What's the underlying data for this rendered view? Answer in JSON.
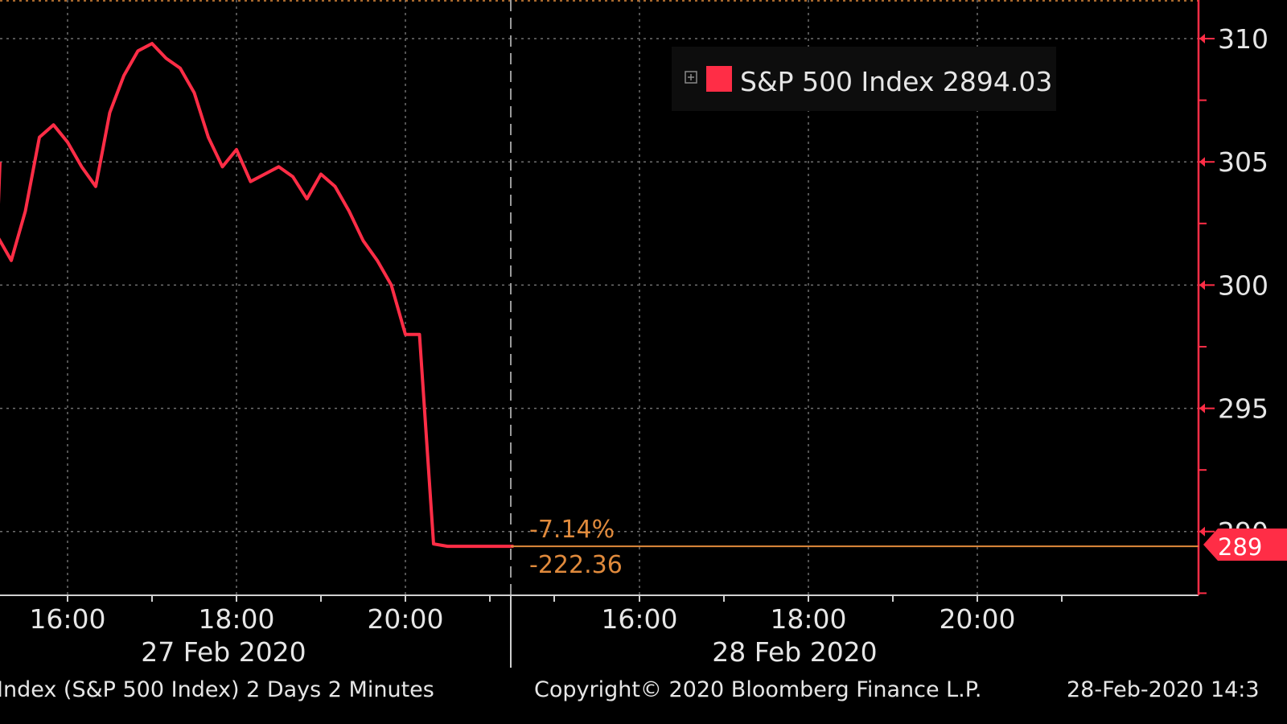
{
  "theme": {
    "background": "#000000",
    "grid": "#6f6f6f",
    "series_color": "#ff2d46",
    "axis_color": "#ff2d46",
    "text": "#e6e6e6",
    "annotation_color": "#e08a3c"
  },
  "legend": {
    "expand_icon": "plus-box-icon",
    "swatch_color": "#ff2d46",
    "label": "S&P 500 Index 2894.03"
  },
  "annotations": {
    "pct_change": "-7.14%",
    "abs_change": "-222.36",
    "last_price_tag": "289"
  },
  "footer": {
    "left": "Index (S&P 500 Index) 2 Days 2 Minutes",
    "center": "Copyright© 2020 Bloomberg Finance L.P.",
    "right": "28-Feb-2020 14:3"
  },
  "chart_data": {
    "type": "line",
    "title": "",
    "xlabel": "",
    "ylabel": "",
    "y_tick_labels": [
      "310",
      "305",
      "300",
      "295",
      "290"
    ],
    "y_ticks": [
      3100,
      3050,
      3000,
      2950,
      2900
    ],
    "ylim": [
      2866,
      3115
    ],
    "grid": true,
    "legend_position": "top-right",
    "day_labels": [
      "27 Feb 2020",
      "28 Feb 2020"
    ],
    "time_labels": [
      "16:00",
      "18:00",
      "20:00",
      "16:00",
      "18:00",
      "20:00"
    ],
    "series": [
      {
        "name": "S&P 500 Index",
        "last_value": 2894.03,
        "x": [
          "27 Feb 15:00",
          "27 Feb 15:10",
          "27 Feb 15:20",
          "27 Feb 15:30",
          "27 Feb 15:40",
          "27 Feb 15:50",
          "27 Feb 16:00",
          "27 Feb 16:10",
          "27 Feb 16:20",
          "27 Feb 16:30",
          "27 Feb 16:40",
          "27 Feb 16:50",
          "27 Feb 17:00",
          "27 Feb 17:10",
          "27 Feb 17:20",
          "27 Feb 17:30",
          "27 Feb 17:40",
          "27 Feb 17:50",
          "27 Feb 18:00",
          "27 Feb 18:10",
          "27 Feb 18:20",
          "27 Feb 18:30",
          "27 Feb 18:40",
          "27 Feb 18:50",
          "27 Feb 19:00",
          "27 Feb 19:10",
          "27 Feb 19:20",
          "27 Feb 19:30",
          "27 Feb 19:40",
          "27 Feb 19:50",
          "27 Feb 20:00",
          "27 Feb 20:10",
          "27 Feb 20:20",
          "27 Feb 20:30",
          "27 Feb 20:40",
          "27 Feb 20:50",
          "27 Feb 21:00",
          "28 Feb 14:30",
          "28 Feb 14:32"
        ],
        "values": [
          3050,
          3020,
          3010,
          3030,
          3060,
          3065,
          3058,
          3048,
          3040,
          3070,
          3085,
          3095,
          3098,
          3092,
          3088,
          3078,
          3060,
          3048,
          3055,
          3042,
          3045,
          3048,
          3044,
          3035,
          3045,
          3040,
          3030,
          3018,
          3010,
          3000,
          2980,
          2980,
          2895,
          2894.03,
          2894.03,
          2894.03,
          2894.03,
          2894.03,
          2894.03
        ]
      }
    ]
  }
}
